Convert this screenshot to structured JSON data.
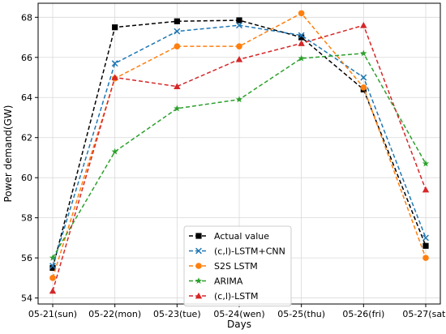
{
  "chart_data": {
    "type": "line",
    "title": "",
    "xlabel": "Days",
    "ylabel": "Power demand(GW)",
    "categories": [
      "05-21(sun)",
      "05-22(mon)",
      "05-23(tue)",
      "05-24(wen)",
      "05-25(thu)",
      "05-26(fri)",
      "05-27(sat)"
    ],
    "ylim": [
      53.7,
      68.7
    ],
    "yticks": [
      54,
      56,
      58,
      60,
      62,
      64,
      66,
      68
    ],
    "grid": true,
    "legend_position": "bottom-center",
    "series": [
      {
        "name": "Actual value",
        "values": [
          55.5,
          67.5,
          67.8,
          67.85,
          67.0,
          64.4,
          56.6
        ],
        "color": "#000000",
        "marker": "square"
      },
      {
        "name": "(c,l)-LSTM+CNN",
        "values": [
          55.6,
          65.7,
          67.3,
          67.6,
          67.1,
          65.0,
          57.0
        ],
        "color": "#1f77b4",
        "marker": "x"
      },
      {
        "name": "S2S LSTM",
        "values": [
          55.0,
          64.95,
          66.55,
          66.55,
          68.2,
          64.5,
          56.0
        ],
        "color": "#ff7f0e",
        "marker": "circle"
      },
      {
        "name": "ARIMA",
        "values": [
          56.0,
          61.3,
          63.45,
          63.9,
          65.95,
          66.2,
          60.7
        ],
        "color": "#2ca02c",
        "marker": "star"
      },
      {
        "name": "(c,l)-LSTM",
        "values": [
          54.35,
          65.0,
          64.55,
          65.9,
          66.7,
          67.6,
          59.4
        ],
        "color": "#d62728",
        "marker": "triangle"
      }
    ]
  }
}
